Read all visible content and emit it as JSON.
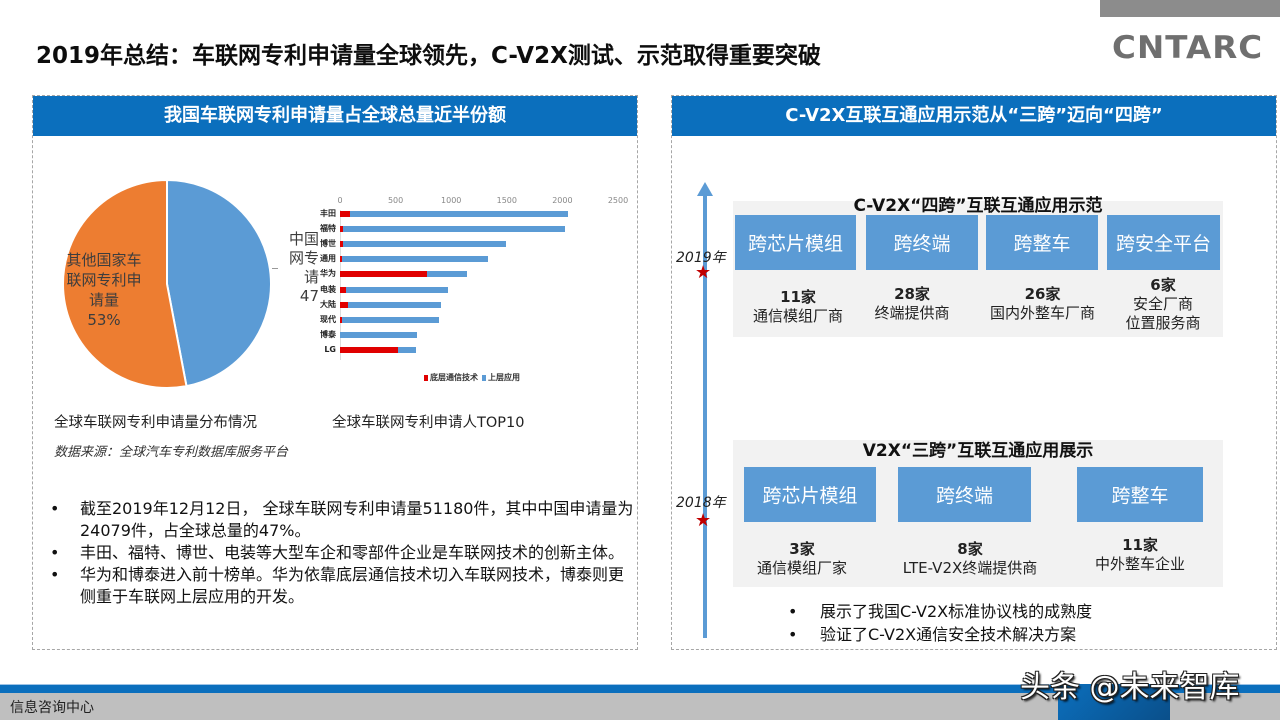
{
  "page": {
    "title": "2019年总结：车联网专利申请量全球领先，C-V2X测试、示范取得重要突破",
    "logo_text": "CNTARC"
  },
  "left_panel": {
    "header": "我国车联网专利申请量占全球总量近半份额",
    "pie_caption": "全球车联网专利申请量分布情况",
    "bar_caption": "全球车联网专利申请人TOP10",
    "source": "数据来源：全球汽车专利数据库服务平台",
    "pie_label_other": "其他国家车联网专利申请量",
    "pie_label_other_pct": "53%",
    "pie_label_china_lines": [
      "中国",
      "网专",
      "请",
      "47"
    ],
    "bullets": [
      "截至2019年12月12日， 全球车联网专利申请量51180件，其中中国申请量为 24079件，占全球总量的47%。",
      "丰田、福特、博世、电装等大型车企和零部件企业是车联网技术的创新主体。",
      "华为和博泰进入前十榜单。华为依靠底层通信技术切入车联网技术，博泰则更侧重于车联网上层应用的开发。"
    ],
    "bullet_symbol": "•"
  },
  "right_panel": {
    "header": "C-V2X互联互通应用示范从“三跨”迈向“四跨”",
    "year_2019": "2019年",
    "year_2018": "2018年",
    "star_symbol": "★",
    "four_cross": {
      "title": "C-V2X“四跨”互联互通应用示范",
      "categories": [
        "跨芯片模组",
        "跨终端",
        "跨整车",
        "跨安全平台"
      ],
      "stats": [
        {
          "num": "11家",
          "desc": "通信模组厂商"
        },
        {
          "num": "28家",
          "desc": "终端提供商"
        },
        {
          "num": "26家",
          "desc": "国内外整车厂商"
        },
        {
          "num": "6家",
          "desc": "安全厂商\n位置服务商",
          "desc1": "安全厂商",
          "desc2": "位置服务商"
        }
      ]
    },
    "three_cross": {
      "title": "V2X“三跨”互联互通应用展示",
      "categories": [
        "跨芯片模组",
        "跨终端",
        "跨整车"
      ],
      "stats": [
        {
          "num": "3家",
          "desc": "通信模组厂家"
        },
        {
          "num": "8家",
          "desc": "LTE-V2X终端提供商"
        },
        {
          "num": "11家",
          "desc": "中外整车企业"
        }
      ]
    },
    "bullets": [
      "展示了我国C-V2X标准协议栈的成熟度",
      "验证了C-V2X通信安全技术解决方案"
    ]
  },
  "footer": {
    "text": "信息咨询中心",
    "watermark": "头条 @未来智库"
  },
  "colors": {
    "brand_blue": "#0b6fbd",
    "pie_china": "#5b9bd5",
    "pie_other": "#ed7d31",
    "bar_bottom": "#e00000",
    "bar_top": "#5b9bd5",
    "star": "#c00000"
  },
  "chart_data": [
    {
      "type": "pie",
      "title": "全球车联网专利申请量分布情况",
      "categories": [
        "中国车联网专利申请量",
        "其他国家车联网专利申请量"
      ],
      "values": [
        47,
        53
      ],
      "unit": "%"
    },
    {
      "type": "bar",
      "orientation": "horizontal",
      "stacked": true,
      "title": "全球车联网专利申请人TOP10",
      "categories": [
        "丰田",
        "福特",
        "博世",
        "通用",
        "华为",
        "电装",
        "大陆",
        "现代",
        "博泰",
        "LG"
      ],
      "series": [
        {
          "name": "底层通信技术",
          "values": [
            90,
            30,
            30,
            20,
            780,
            50,
            70,
            15,
            0,
            520
          ]
        },
        {
          "name": "上层应用",
          "values": [
            1960,
            1990,
            1460,
            1310,
            360,
            920,
            840,
            875,
            690,
            160
          ]
        }
      ],
      "xticks": [
        0,
        500,
        1000,
        1500,
        2000,
        2500
      ],
      "xlim": [
        0,
        2500
      ],
      "legend_position": "bottom",
      "grid": false
    }
  ]
}
